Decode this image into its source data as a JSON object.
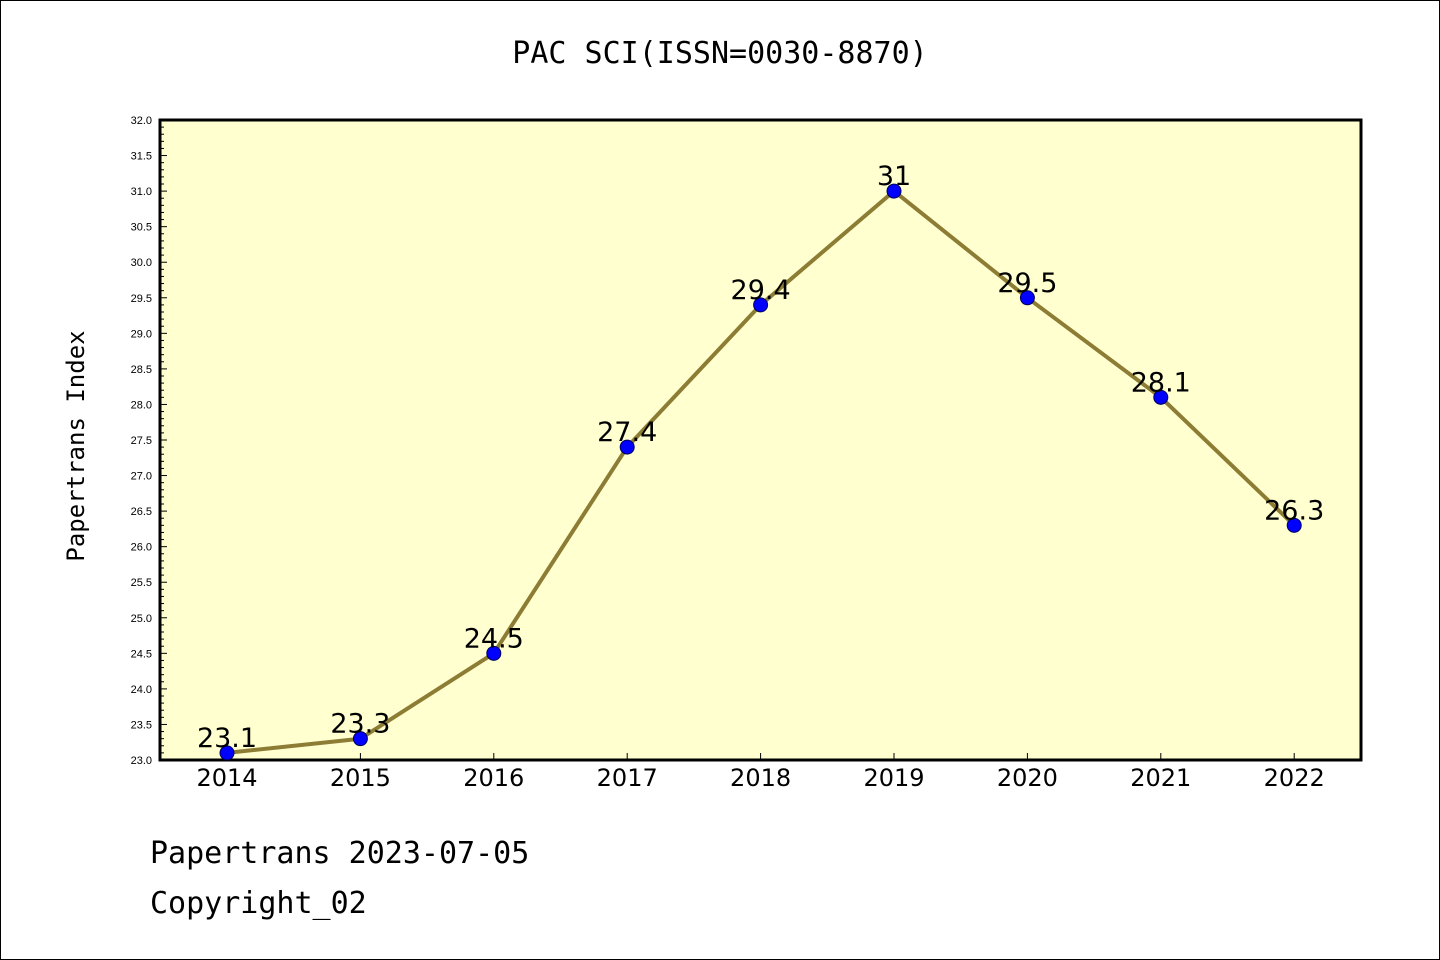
{
  "chart_data": {
    "type": "line",
    "title": "PAC SCI(ISSN=0030-8870)",
    "ylabel": "Papertrans Index",
    "xlabel": "",
    "categories": [
      "2014",
      "2015",
      "2016",
      "2017",
      "2018",
      "2019",
      "2020",
      "2021",
      "2022"
    ],
    "values": [
      23.1,
      23.3,
      24.5,
      27.4,
      29.4,
      31,
      29.5,
      28.1,
      26.3
    ],
    "data_labels": [
      "23.1",
      "23.3",
      "24.5",
      "27.4",
      "29.4",
      "31",
      "29.5",
      "28.1",
      "26.3"
    ],
    "ylim": [
      23.0,
      32.0
    ],
    "yticks": [
      "23.0",
      "23.5",
      "24.0",
      "24.5",
      "25.0",
      "25.5",
      "26.0",
      "26.5",
      "27.0",
      "27.5",
      "28.0",
      "28.5",
      "29.0",
      "29.5",
      "30.0",
      "30.5",
      "31.0",
      "31.5",
      "32.0"
    ],
    "grid": false,
    "colors": {
      "plot_background": "#ffffd0",
      "line": "#8c7c34",
      "marker": "#0000ff"
    }
  },
  "footer": {
    "line1": "Papertrans 2023-07-05",
    "line2": "Copyright_02"
  }
}
